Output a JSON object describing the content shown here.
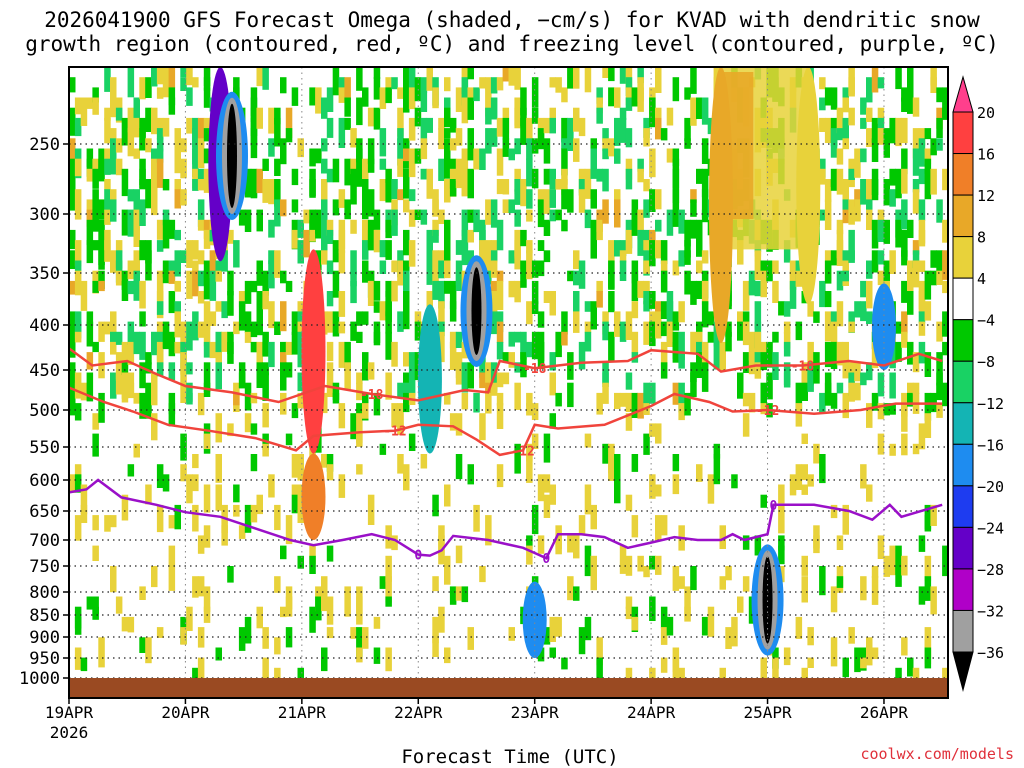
{
  "chart_data": {
    "type": "heatmap",
    "title": "2026041900 GFS Forecast Omega (shaded, −cm/s) for KVAD with dendritic snow",
    "subtitle": "growth region (contoured, red, ºC) and freezing level (contoured, purple, ºC)",
    "xlabel": "Forecast Time (UTC)",
    "ylabel": "",
    "credit": "coolwx.com/models",
    "x_ticks": [
      "19APR",
      "20APR",
      "21APR",
      "22APR",
      "23APR",
      "24APR",
      "25APR",
      "26APR"
    ],
    "x_tick_year": "2026",
    "x_range_days": [
      0,
      7.55
    ],
    "y_ticks": [
      "250",
      "300",
      "350",
      "400",
      "450",
      "500",
      "550",
      "600",
      "650",
      "700",
      "750",
      "800",
      "850",
      "900",
      "950",
      "1000"
    ],
    "y_tick_values": [
      250,
      300,
      350,
      400,
      450,
      500,
      550,
      600,
      650,
      700,
      750,
      800,
      850,
      900,
      950,
      1000
    ],
    "y_range_hpa": [
      200,
      1020
    ],
    "surface_pressure_hpa": 1005,
    "colorbar": {
      "labels": [
        "20",
        "16",
        "12",
        "8",
        "4",
        "−4",
        "−8",
        "−12",
        "−16",
        "−20",
        "−24",
        "−28",
        "−32",
        "−36"
      ],
      "colors": [
        "#ff3f8c",
        "#ff4040",
        "#f07f28",
        "#e8a828",
        "#e8d23a",
        "#ffffff",
        "#00c800",
        "#19d264",
        "#14b4b4",
        "#1e8cf0",
        "#1e3cf0",
        "#6400c8",
        "#b000c8",
        "#a0a0a0",
        "#000000"
      ]
    },
    "dgz_contours": [
      {
        "value": "-18",
        "points": [
          [
            0,
            426
          ],
          [
            0.2,
            445
          ],
          [
            0.5,
            440
          ],
          [
            0.75,
            455
          ],
          [
            1.0,
            470
          ],
          [
            1.4,
            478
          ],
          [
            1.8,
            490
          ],
          [
            2.2,
            470
          ],
          [
            2.6,
            480
          ],
          [
            3.0,
            488
          ],
          [
            3.4,
            475
          ],
          [
            3.6,
            478
          ],
          [
            3.7,
            440
          ],
          [
            4.0,
            448
          ],
          [
            4.4,
            442
          ],
          [
            4.8,
            440
          ],
          [
            5.0,
            428
          ],
          [
            5.4,
            432
          ],
          [
            5.6,
            452
          ],
          [
            5.9,
            445
          ],
          [
            6.3,
            445
          ],
          [
            6.7,
            440
          ],
          [
            7.0,
            445
          ],
          [
            7.3,
            432
          ],
          [
            7.5,
            440
          ]
        ]
      },
      {
        "value": "-12",
        "points": [
          [
            0,
            472
          ],
          [
            0.3,
            490
          ],
          [
            0.55,
            502
          ],
          [
            0.85,
            520
          ],
          [
            1.2,
            528
          ],
          [
            1.6,
            538
          ],
          [
            1.95,
            555
          ],
          [
            2.1,
            535
          ],
          [
            2.5,
            530
          ],
          [
            2.8,
            528
          ],
          [
            3.0,
            520
          ],
          [
            3.3,
            522
          ],
          [
            3.5,
            540
          ],
          [
            3.7,
            562
          ],
          [
            3.9,
            555
          ],
          [
            4.0,
            520
          ],
          [
            4.2,
            525
          ],
          [
            4.6,
            520
          ],
          [
            5.0,
            495
          ],
          [
            5.2,
            480
          ],
          [
            5.5,
            490
          ],
          [
            5.7,
            502
          ],
          [
            6.0,
            500
          ],
          [
            6.4,
            505
          ],
          [
            6.8,
            500
          ],
          [
            7.1,
            492
          ],
          [
            7.5,
            492
          ]
        ]
      }
    ],
    "freezing_level": {
      "value": "0",
      "points": [
        [
          0,
          620
        ],
        [
          0.15,
          615
        ],
        [
          0.25,
          600
        ],
        [
          0.45,
          628
        ],
        [
          0.75,
          640
        ],
        [
          1.0,
          652
        ],
        [
          1.3,
          660
        ],
        [
          1.6,
          680
        ],
        [
          1.9,
          700
        ],
        [
          2.1,
          710
        ],
        [
          2.35,
          700
        ],
        [
          2.6,
          690
        ],
        [
          2.8,
          700
        ],
        [
          3.0,
          728
        ],
        [
          3.1,
          730
        ],
        [
          3.2,
          720
        ],
        [
          3.3,
          693
        ],
        [
          3.6,
          700
        ],
        [
          3.9,
          715
        ],
        [
          4.0,
          725
        ],
        [
          4.1,
          735
        ],
        [
          4.2,
          690
        ],
        [
          4.4,
          690
        ],
        [
          4.6,
          695
        ],
        [
          4.8,
          715
        ],
        [
          5.0,
          705
        ],
        [
          5.2,
          695
        ],
        [
          5.4,
          700
        ],
        [
          5.6,
          700
        ],
        [
          5.7,
          690
        ],
        [
          5.8,
          700
        ],
        [
          6.0,
          690
        ],
        [
          6.05,
          640
        ],
        [
          6.4,
          640
        ],
        [
          6.7,
          650
        ],
        [
          6.9,
          665
        ],
        [
          7.05,
          640
        ],
        [
          7.15,
          660
        ],
        [
          7.5,
          640
        ]
      ]
    },
    "omega_features": [
      {
        "x": 1.3,
        "p0": 200,
        "p1": 340,
        "value": -24
      },
      {
        "x": 1.4,
        "p0": 220,
        "p1": 300,
        "value": -36
      },
      {
        "x": 2.1,
        "p0": 330,
        "p1": 560,
        "value": 18
      },
      {
        "x": 2.1,
        "p0": 560,
        "p1": 700,
        "value": 12
      },
      {
        "x": 3.1,
        "p0": 380,
        "p1": 560,
        "value": -12
      },
      {
        "x": 3.5,
        "p0": 340,
        "p1": 440,
        "value": -36
      },
      {
        "x": 4.0,
        "p0": 780,
        "p1": 950,
        "value": -16
      },
      {
        "x": 6.0,
        "p0": 720,
        "p1": 930,
        "value": -36
      },
      {
        "x": 7.0,
        "p0": 360,
        "p1": 450,
        "value": -16
      },
      {
        "x": 5.6,
        "p0": 200,
        "p1": 420,
        "value": 10
      },
      {
        "x": 6.35,
        "p0": 200,
        "p1": 380,
        "value": 6
      }
    ]
  }
}
